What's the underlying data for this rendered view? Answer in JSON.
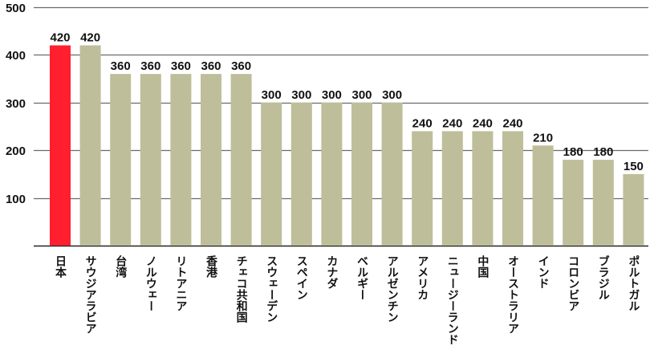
{
  "chart_data": {
    "type": "bar",
    "title": "",
    "xlabel": "",
    "ylabel": "",
    "ylim": [
      0,
      500
    ],
    "yticks": [
      100,
      200,
      300,
      400,
      500
    ],
    "grid": true,
    "categories": [
      "日本",
      "サウジアラビア",
      "台湾",
      "ノルウェー",
      "リトアニア",
      "香港",
      "チェコ共和国",
      "スウェーデン",
      "スペイン",
      "カナダ",
      "ベルギー",
      "アルゼンチン",
      "アメリカ",
      "ニュージーランド",
      "中国",
      "オーストラリア",
      "インド",
      "コロンビア",
      "ブラジル",
      "ポルトガル"
    ],
    "values": [
      420,
      420,
      360,
      360,
      360,
      360,
      360,
      300,
      300,
      300,
      300,
      300,
      240,
      240,
      240,
      240,
      210,
      180,
      180,
      150
    ],
    "highlight_index": 0,
    "colors": {
      "highlight": "#ff1f2e",
      "bar": "#bebe9a",
      "grid": "#6b6b6b",
      "axis": "#222222"
    }
  }
}
